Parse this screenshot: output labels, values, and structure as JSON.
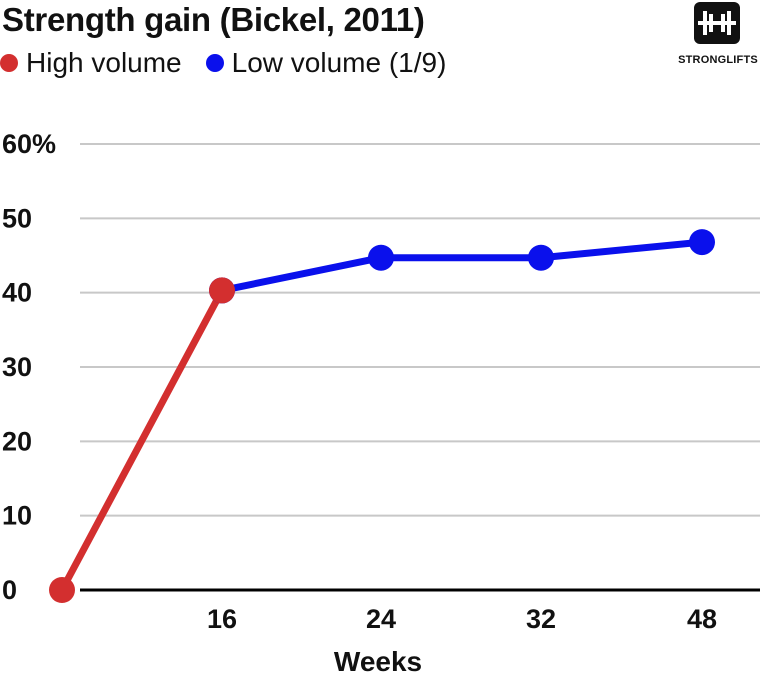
{
  "chart_data": {
    "type": "line",
    "title": "Strength gain (Bickel, 2011)",
    "xlabel": "Weeks",
    "ylabel": "",
    "ylim": [
      0,
      60
    ],
    "y_ticks": [
      0,
      10,
      20,
      30,
      40,
      50,
      60
    ],
    "y_tick_labels": [
      "0",
      "10",
      "20",
      "30",
      "40",
      "50",
      "60%"
    ],
    "x_ticks": [
      16,
      24,
      32,
      48
    ],
    "x_tick_labels": [
      "16",
      "24",
      "32",
      "48"
    ],
    "grid": true,
    "legend_position": "top-left",
    "series": [
      {
        "name": "High volume",
        "color": "#d32f2f",
        "points": [
          {
            "x": 0,
            "y": 0
          },
          {
            "x": 16,
            "y": 40.3
          }
        ]
      },
      {
        "name": "Low volume (1/9)",
        "color": "#0a10ec",
        "points": [
          {
            "x": 16,
            "y": 40.3
          },
          {
            "x": 24,
            "y": 44.7
          },
          {
            "x": 32,
            "y": 44.7
          },
          {
            "x": 48,
            "y": 46.8
          }
        ]
      }
    ]
  },
  "logo": {
    "text": "STRONGLIFTS",
    "icon": "barbell-icon"
  }
}
